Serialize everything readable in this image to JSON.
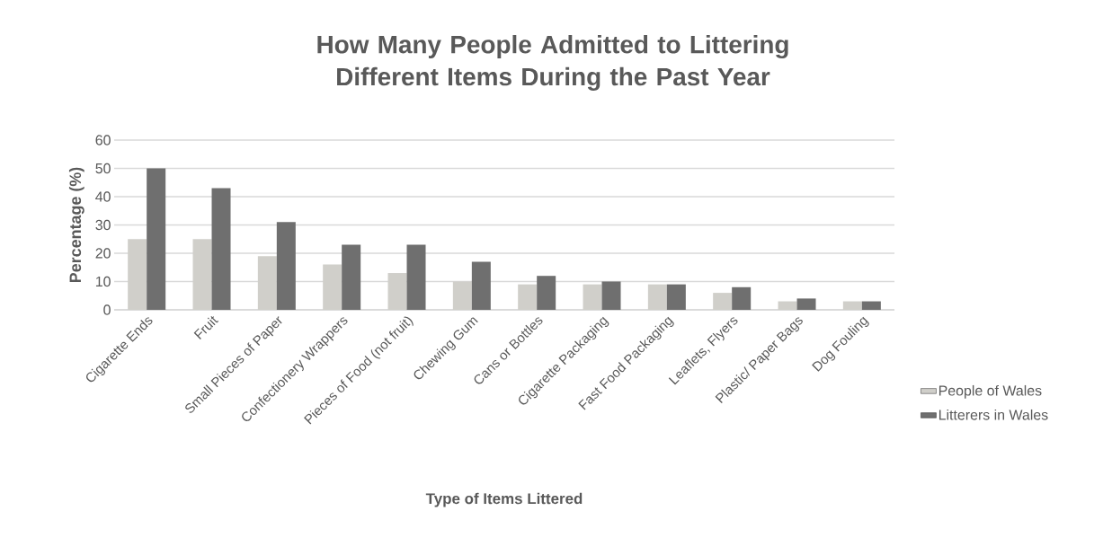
{
  "chart_data": {
    "type": "bar",
    "title": "How Many People Admitted to Littering Different Items During the Past Year",
    "xlabel": "Type of Items Littered",
    "ylabel": "Percentage (%)",
    "categories": [
      "Cigarette Ends",
      "Fruit",
      "Small Pieces of Paper",
      "Confectionery Wrappers",
      "Pieces of Food (not fruit)",
      "Chewing Gum",
      "Cans or Bottles",
      "Cigarette Packaging",
      "Fast Food Packaging",
      "Leaflets, Flyers",
      "Plastic/ Paper Bags",
      "Dog Fouling"
    ],
    "series": [
      {
        "name": "People of Wales",
        "color": "#d0cfca",
        "values": [
          25,
          25,
          19,
          16,
          13,
          10,
          9,
          9,
          9,
          6,
          3,
          3
        ]
      },
      {
        "name": "Litterers in Wales",
        "color": "#6f6f6f",
        "values": [
          50,
          43,
          31,
          23,
          23,
          17,
          12,
          10,
          9,
          8,
          4,
          3
        ]
      }
    ],
    "ylim": [
      0,
      60
    ],
    "yticks": [
      0,
      10,
      20,
      30,
      40,
      50,
      60
    ],
    "grid": "y",
    "legend": "right"
  }
}
